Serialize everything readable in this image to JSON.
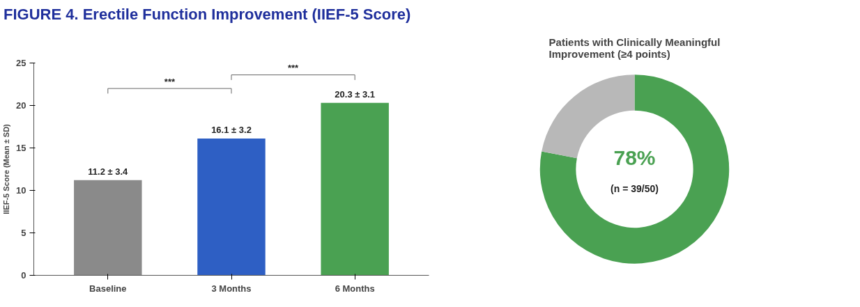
{
  "chart_data": [
    {
      "type": "bar",
      "title": "FIGURE 4. Erectile Function Improvement (IIEF-5 Score)",
      "ylabel": "IIEF-5 Score (Mean ± SD)",
      "categories": [
        "Baseline",
        "3 Months",
        "6 Months"
      ],
      "values": [
        11.2,
        16.1,
        20.3
      ],
      "value_labels": [
        "11.2 ± 3.4",
        "16.1 ± 3.2",
        "20.3 ± 3.1"
      ],
      "colors": [
        "#8a8a8a",
        "#2e5fc4",
        "#4aa152"
      ],
      "ylim": [
        0,
        25
      ],
      "yticks": [
        0,
        5,
        10,
        15,
        20,
        25
      ],
      "grid": false,
      "annotations": [
        "***",
        "***"
      ]
    },
    {
      "type": "donut",
      "title": "Patients with Clinically Meaningful\nImprovement (≥4 points)",
      "categories": [
        null,
        null
      ],
      "values": [
        78,
        22
      ],
      "colors": [
        "#4aa152",
        "#b8b8b8"
      ],
      "annotations": [
        "78%",
        "(n = 39/50)"
      ]
    }
  ]
}
